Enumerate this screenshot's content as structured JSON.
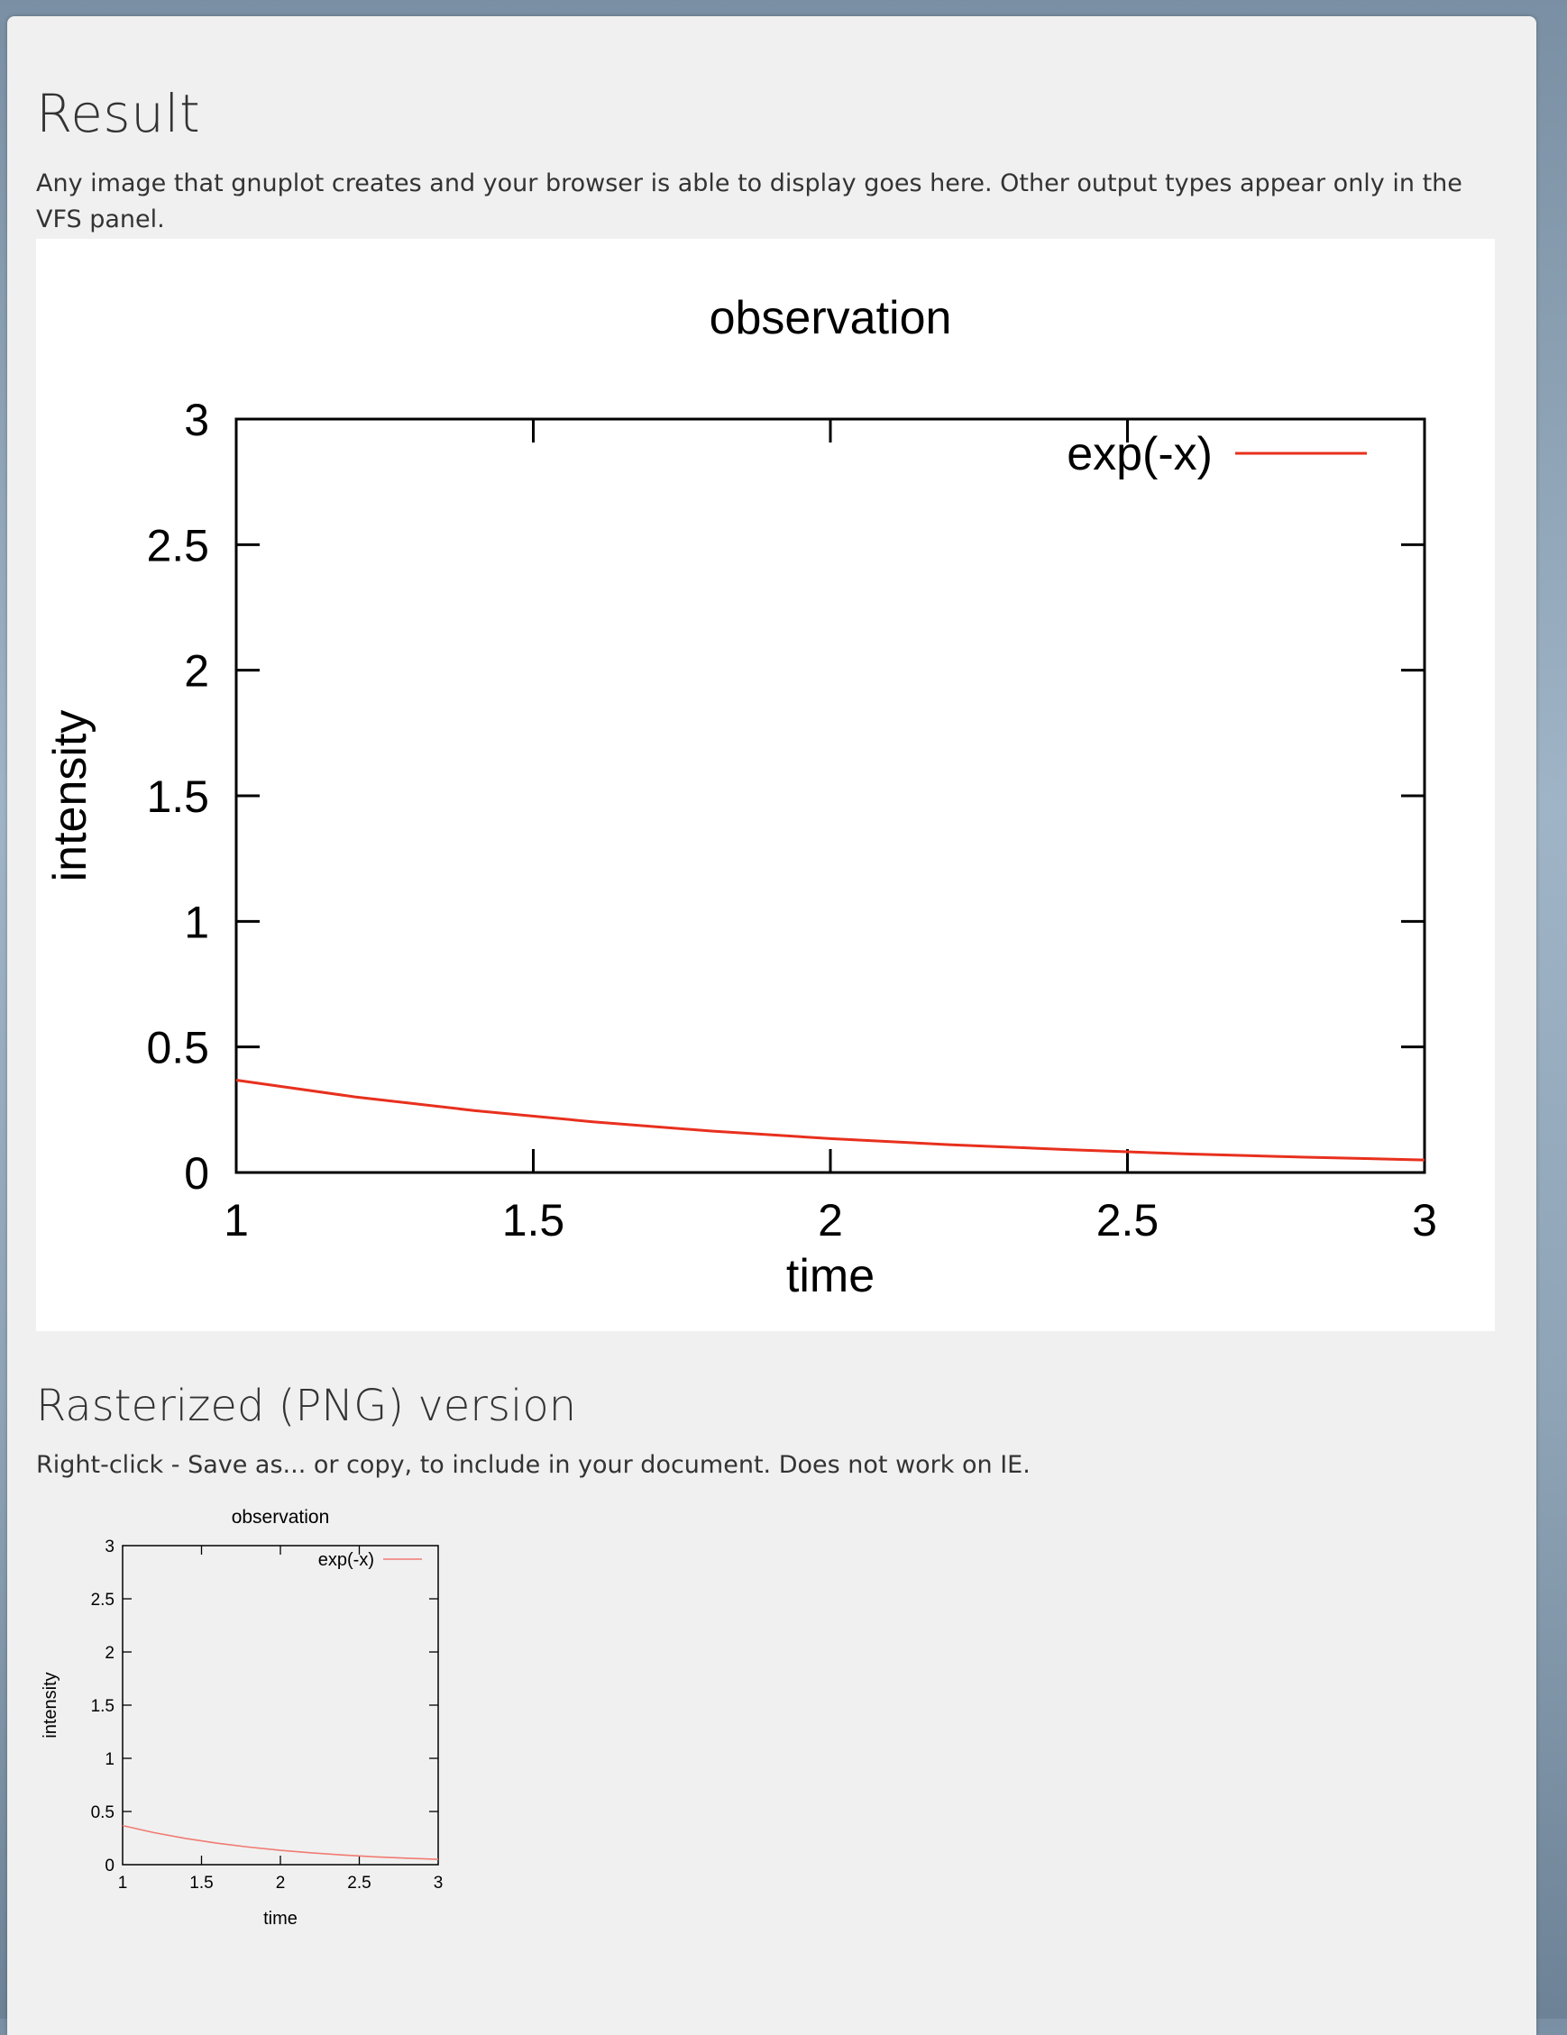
{
  "page": {
    "title": "Result",
    "description": "Any image that gnuplot creates and your browser is able to display goes here. Other output types appear only in the VFS panel.",
    "raster_title": "Rasterized (PNG) version",
    "raster_description": "Right-click - Save as... or copy, to include in your document. Does not work on IE."
  },
  "colors": {
    "series": "#e8301e",
    "series_png": "#f07c72"
  },
  "chart_data": [
    {
      "type": "line",
      "title": "observation",
      "xlabel": "time",
      "ylabel": "intensity",
      "xlim": [
        1,
        3
      ],
      "ylim": [
        0,
        3
      ],
      "xticks": [
        "1",
        "1.5",
        "2",
        "2.5",
        "3"
      ],
      "yticks": [
        "0",
        "0.5",
        "1",
        "1.5",
        "2",
        "2.5",
        "3"
      ],
      "legend": "top-right",
      "grid": false,
      "series": [
        {
          "name": "exp(-x)",
          "x": [
            1,
            1.2,
            1.4,
            1.6,
            1.8,
            2,
            2.2,
            2.4,
            2.6,
            2.8,
            3
          ],
          "y": [
            0.368,
            0.301,
            0.247,
            0.202,
            0.165,
            0.135,
            0.111,
            0.091,
            0.074,
            0.061,
            0.05
          ]
        }
      ]
    },
    {
      "type": "line",
      "title": "observation",
      "xlabel": "time",
      "ylabel": "intensity",
      "xlim": [
        1,
        3
      ],
      "ylim": [
        0,
        3
      ],
      "xticks": [
        "1",
        "1.5",
        "2",
        "2.5",
        "3"
      ],
      "yticks": [
        "0",
        "0.5",
        "1",
        "1.5",
        "2",
        "2.5",
        "3"
      ],
      "legend": "top-right",
      "grid": false,
      "series": [
        {
          "name": "exp(-x)",
          "x": [
            1,
            1.2,
            1.4,
            1.6,
            1.8,
            2,
            2.2,
            2.4,
            2.6,
            2.8,
            3
          ],
          "y": [
            0.368,
            0.301,
            0.247,
            0.202,
            0.165,
            0.135,
            0.111,
            0.091,
            0.074,
            0.061,
            0.05
          ]
        }
      ]
    }
  ]
}
